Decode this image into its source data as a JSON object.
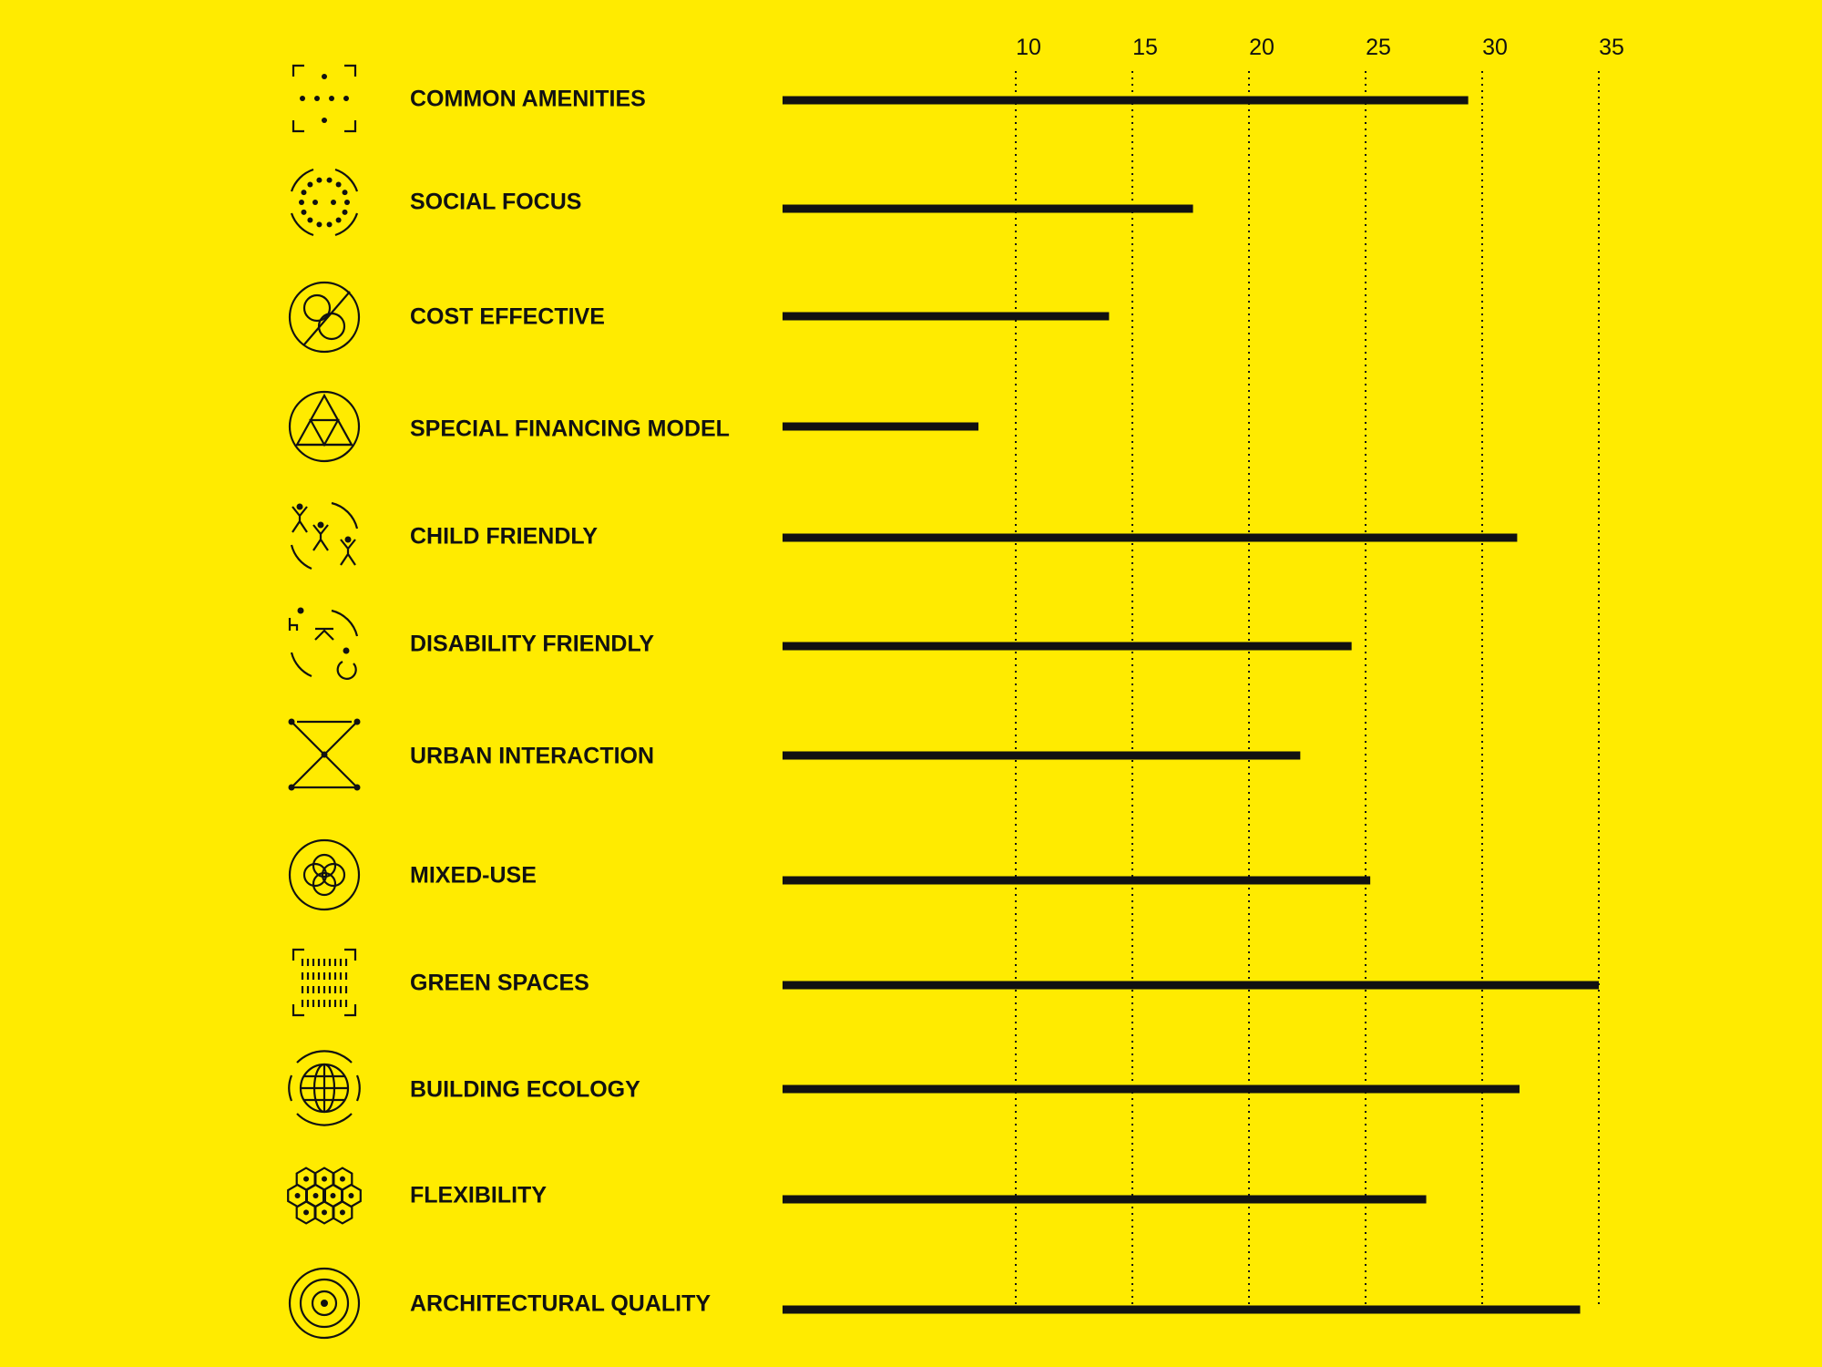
{
  "colors": {
    "background": "#FFEB00",
    "ink": "#111111"
  },
  "chart_data": {
    "type": "bar",
    "orientation": "horizontal",
    "title": "",
    "xlabel": "",
    "ylabel": "",
    "xlim": [
      0,
      35
    ],
    "ticks": [
      {
        "value": 10,
        "label": "10"
      },
      {
        "value": 15,
        "label": "15"
      },
      {
        "value": 20,
        "label": "20"
      },
      {
        "value": 25,
        "label": "25"
      },
      {
        "value": 30,
        "label": "30"
      },
      {
        "value": 35,
        "label": "35"
      }
    ],
    "grid": "dotted vertical lines at ticks",
    "categories": [
      {
        "label": "COMMON AMENITIES",
        "icon": "dots-frame-icon",
        "value": 29.4
      },
      {
        "label": "SOCIAL FOCUS",
        "icon": "dot-ring-icon",
        "value": 17.6
      },
      {
        "label": "COST EFFECTIVE",
        "icon": "coins-slash-icon",
        "value": 14.0
      },
      {
        "label": "SPECIAL FINANCING MODEL",
        "icon": "triangle-circle-icon",
        "value": 8.4
      },
      {
        "label": "CHILD FRIENDLY",
        "icon": "children-icon",
        "value": 31.5
      },
      {
        "label": "DISABILITY FRIENDLY",
        "icon": "accessibility-icon",
        "value": 24.4
      },
      {
        "label": "URBAN INTERACTION",
        "icon": "hourglass-network-icon",
        "value": 22.2
      },
      {
        "label": "MIXED-USE",
        "icon": "overlapping-circles-icon",
        "value": 25.2
      },
      {
        "label": "GREEN SPACES",
        "icon": "grass-frame-icon",
        "value": 35.0
      },
      {
        "label": "BUILDING ECOLOGY",
        "icon": "globe-icon",
        "value": 31.6
      },
      {
        "label": "FLEXIBILITY",
        "icon": "hexagon-cluster-icon",
        "value": 27.6
      },
      {
        "label": "ARCHITECTURAL QUALITY",
        "icon": "concentric-circles-icon",
        "value": 34.2
      }
    ]
  }
}
